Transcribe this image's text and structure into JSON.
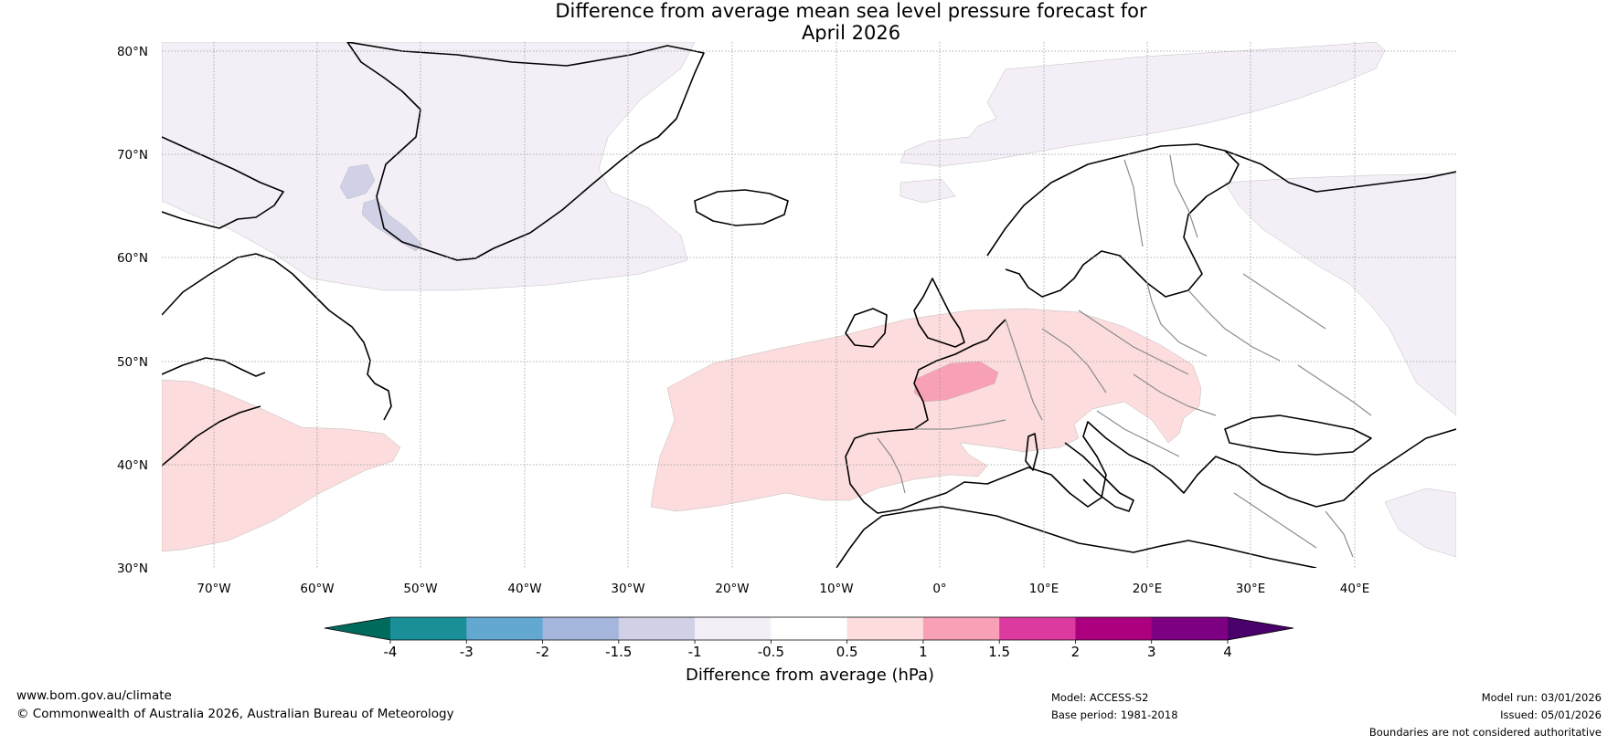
{
  "title": {
    "line1": "Difference from average mean sea level pressure forecast for",
    "line2": "April 2026"
  },
  "map": {
    "lat_labels": [
      "80°N",
      "70°N",
      "60°N",
      "50°N",
      "40°N",
      "30°N"
    ],
    "lon_labels": [
      "70°W",
      "60°W",
      "50°W",
      "40°W",
      "30°W",
      "20°W",
      "10°W",
      "0°",
      "10°E",
      "20°E",
      "30°E",
      "40°E"
    ]
  },
  "colorbar": {
    "tick_labels": [
      "-4",
      "-3",
      "-2",
      "-1.5",
      "-1",
      "-0.5",
      "0.5",
      "1",
      "1.5",
      "2",
      "3",
      "4"
    ],
    "label": "Difference from average (hPa)",
    "colors": {
      "under": "#006b5c",
      "bins": [
        "#1b8f98",
        "#63a8d1",
        "#a5b6dc",
        "#d0d1e6",
        "#f4eff7",
        "#ffffff",
        "#fcdcdc",
        "#f8a0b6",
        "#dd3aa0",
        "#ad0080",
        "#7c0081"
      ],
      "over": "#4a006a"
    }
  },
  "field_colors": {
    "neg_0_5_1": "#f4eff7",
    "neg_1_1_5": "#d0d1e6",
    "pos_0_5_1": "#fcdcdc",
    "pos_1_1_5": "#f8a0b6"
  },
  "footer": {
    "website": "www.bom.gov.au/climate",
    "copyright": "© Commonwealth of Australia 2026, Australian Bureau of Meteorology",
    "model": "Model: ACCESS-S2",
    "base_period": "Base period: 1981-2018",
    "model_run": "Model run: 03/01/2026",
    "issued": "Issued: 05/01/2026",
    "disclaimer": "Boundaries are not considered authoritative"
  }
}
